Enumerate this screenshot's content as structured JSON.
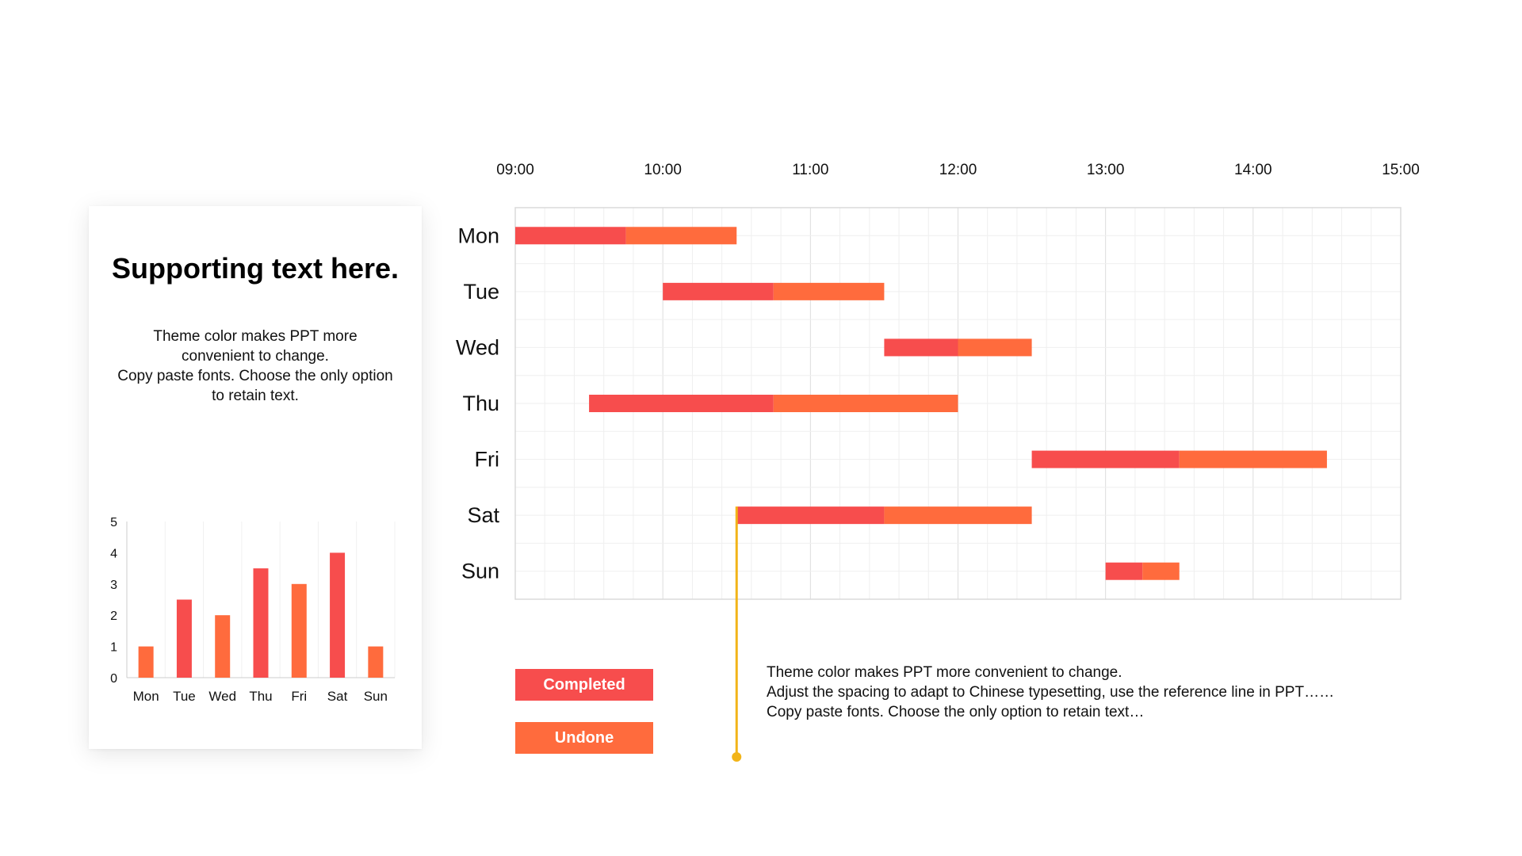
{
  "card": {
    "title": "Supporting text here.",
    "description": [
      "Theme color makes PPT more",
      "convenient to change.",
      "Copy paste fonts. Choose the only option",
      "to retain text."
    ]
  },
  "colors": {
    "completed": "#F74D4D",
    "undone": "#FF6B3D",
    "reference_line": "#F2B418",
    "grid": "#E8E8E8"
  },
  "legend": {
    "completed": "Completed",
    "undone": "Undone"
  },
  "note": [
    "Theme color makes PPT more convenient to change.",
    "Adjust the spacing to adapt to Chinese typesetting, use the reference line in PPT……",
    "Copy paste fonts. Choose the only option to retain text…"
  ],
  "chart_data": [
    {
      "type": "gantt",
      "x_ticks": [
        "09:00",
        "10:00",
        "11:00",
        "12:00",
        "13:00",
        "14:00",
        "15:00"
      ],
      "xlim": [
        9,
        15
      ],
      "categories": [
        "Mon",
        "Tue",
        "Wed",
        "Thu",
        "Fri",
        "Sat",
        "Sun"
      ],
      "tasks": [
        {
          "day": "Mon",
          "start": 9.0,
          "split": 9.75,
          "end": 10.5
        },
        {
          "day": "Tue",
          "start": 10.0,
          "split": 10.75,
          "end": 11.5
        },
        {
          "day": "Wed",
          "start": 11.5,
          "split": 12.0,
          "end": 12.5
        },
        {
          "day": "Thu",
          "start": 9.5,
          "split": 10.75,
          "end": 12.0
        },
        {
          "day": "Fri",
          "start": 12.5,
          "split": 13.5,
          "end": 14.5
        },
        {
          "day": "Sat",
          "start": 10.5,
          "split": 11.5,
          "end": 12.5
        },
        {
          "day": "Sun",
          "start": 13.0,
          "split": 13.25,
          "end": 13.5
        }
      ],
      "series": [
        {
          "name": "Completed"
        },
        {
          "name": "Undone"
        }
      ],
      "reference_line_x": 10.5,
      "grid": true
    },
    {
      "type": "bar",
      "categories": [
        "Mon",
        "Tue",
        "Wed",
        "Thu",
        "Fri",
        "Sat",
        "Sun"
      ],
      "values": [
        1,
        2.5,
        2,
        3.5,
        3,
        4,
        1
      ],
      "ylim": [
        0,
        5
      ],
      "y_ticks": [
        0,
        1,
        2,
        3,
        4,
        5
      ],
      "grid": true
    }
  ]
}
